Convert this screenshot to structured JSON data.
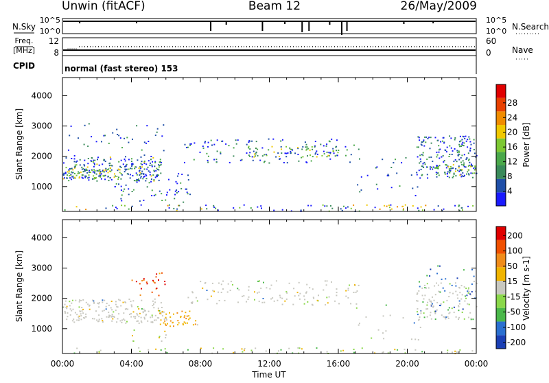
{
  "header": {
    "station": "Unwin (fitACF)",
    "beam": "Beam 12",
    "date": "26/May/2009"
  },
  "panels": {
    "nsky": {
      "left_label": "N.Sky",
      "left_ticks": [
        "10^5",
        "10^0"
      ],
      "right_ticks": [
        "10^5",
        "10^0"
      ],
      "right_label": "N.Search"
    },
    "freq": {
      "left_label_1": "Freq.",
      "left_label_2": "[MHz]",
      "left_ticks": [
        "12",
        "8"
      ],
      "right_ticks": [
        "60",
        "0"
      ],
      "right_label": "Nave"
    },
    "cpid": {
      "label": "CPID",
      "text": "normal (fast stereo) 153"
    }
  },
  "colors": {
    "power_scale": [
      "#1a1aff",
      "#1f4fa8",
      "#3a8a5a",
      "#4aa84a",
      "#7dc832",
      "#f0c800",
      "#f08c00",
      "#e84000",
      "#e00000"
    ],
    "velocity_scale": [
      "#1a3fb4",
      "#2a6fd0",
      "#4ab84a",
      "#8ad84a",
      "#c8c8c0",
      "#f0b400",
      "#f08c1a",
      "#f05000",
      "#e00000"
    ]
  },
  "chart_data": [
    {
      "type": "heatmap",
      "title": "Power",
      "xlabel": "Time UT",
      "ylabel": "Slant Range [km]",
      "x_ticks": [
        "00:00",
        "04:00",
        "08:00",
        "12:00",
        "16:00",
        "20:00",
        "00:00"
      ],
      "xlim_hours": [
        0,
        24
      ],
      "y_ticks": [
        1000,
        2000,
        3000,
        4000
      ],
      "ylim": [
        180,
        4600
      ],
      "colorbar": {
        "label": "Power [dB]",
        "ticks": [
          4,
          8,
          12,
          16,
          20,
          24,
          28
        ]
      }
    },
    {
      "type": "heatmap",
      "title": "Velocity",
      "xlabel": "Time UT",
      "ylabel": "Slant Range [km]",
      "x_ticks": [
        "00:00",
        "04:00",
        "08:00",
        "12:00",
        "16:00",
        "20:00",
        "00:00"
      ],
      "xlim_hours": [
        0,
        24
      ],
      "y_ticks": [
        1000,
        2000,
        3000,
        4000
      ],
      "ylim": [
        180,
        4600
      ],
      "colorbar": {
        "label": "Velocity [m s-1]",
        "ticks": [
          200,
          100,
          50,
          15,
          -15,
          -50,
          -100,
          -200
        ]
      }
    }
  ]
}
